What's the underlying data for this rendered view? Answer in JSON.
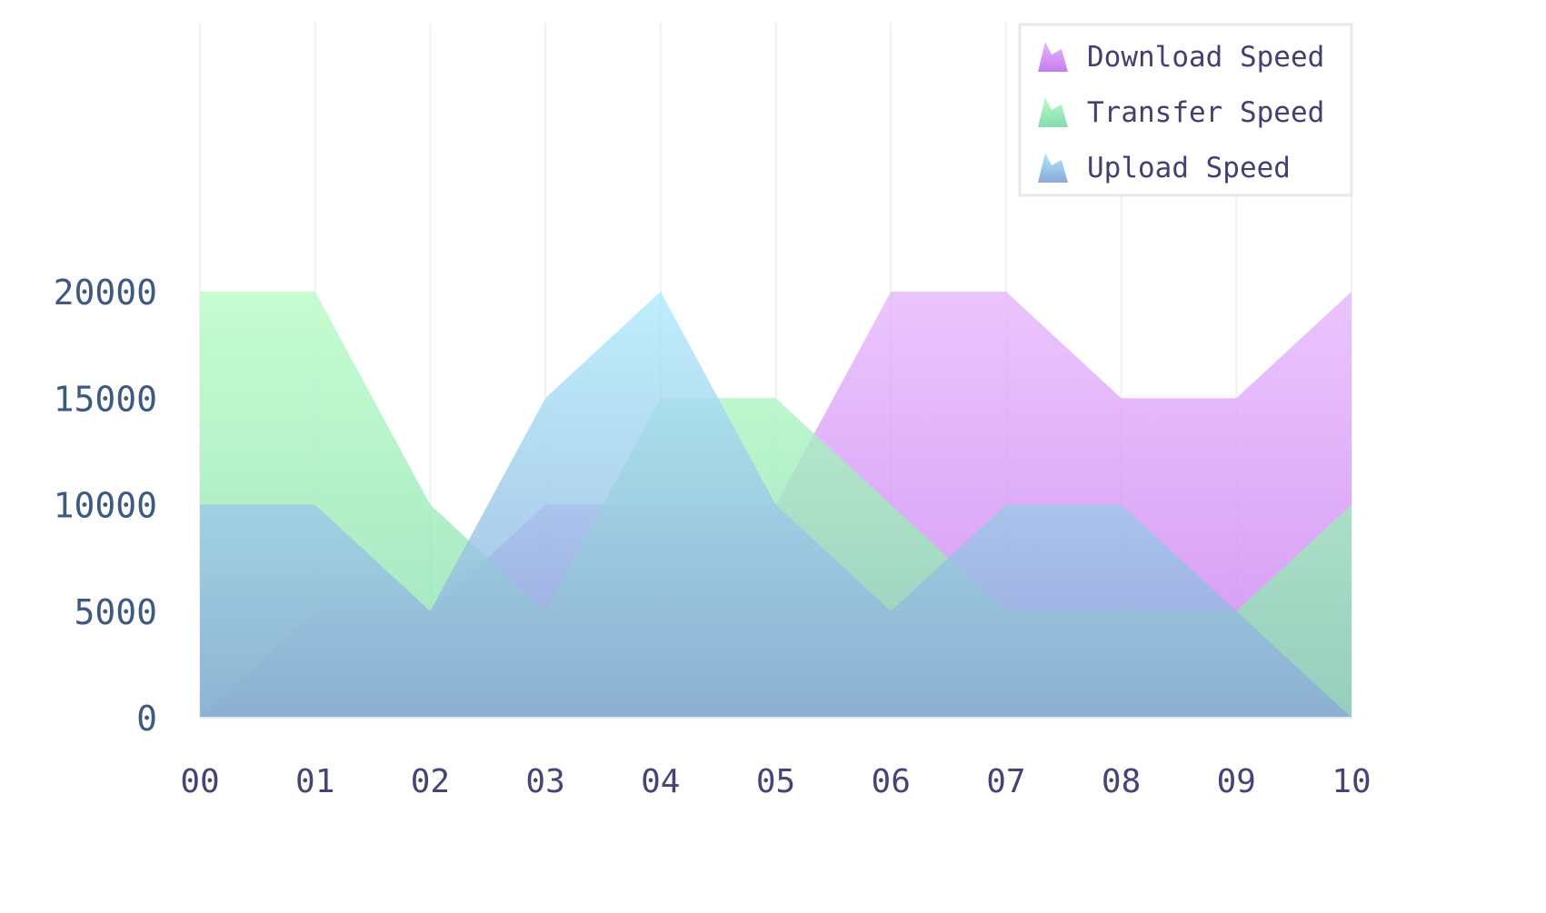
{
  "chart_data": {
    "type": "area",
    "title": "",
    "xlabel": "",
    "ylabel": "",
    "categories": [
      "00",
      "01",
      "02",
      "03",
      "04",
      "05",
      "06",
      "07",
      "08",
      "09",
      "10"
    ],
    "yticks": [
      0,
      5000,
      10000,
      15000,
      20000
    ],
    "ylim": [
      0,
      20000
    ],
    "grid": "vertical",
    "legend_position": "top-right",
    "series": [
      {
        "name": "Download Speed",
        "color_top": "#e6b6fc",
        "color_bottom": "#c77cf0",
        "values": [
          0,
          5000,
          5000,
          10000,
          10000,
          10000,
          20000,
          20000,
          15000,
          15000,
          20000
        ]
      },
      {
        "name": "Transfer Speed",
        "color_top": "#b8fcc6",
        "color_bottom": "#86dcb0",
        "values": [
          20000,
          20000,
          10000,
          5000,
          15000,
          15000,
          10000,
          5000,
          5000,
          5000,
          10000
        ]
      },
      {
        "name": "Upload Speed",
        "color_top": "#aeeafc",
        "color_bottom": "#8aa8d6",
        "values": [
          10000,
          10000,
          5000,
          15000,
          20000,
          10000,
          5000,
          10000,
          10000,
          5000,
          0
        ]
      }
    ]
  }
}
